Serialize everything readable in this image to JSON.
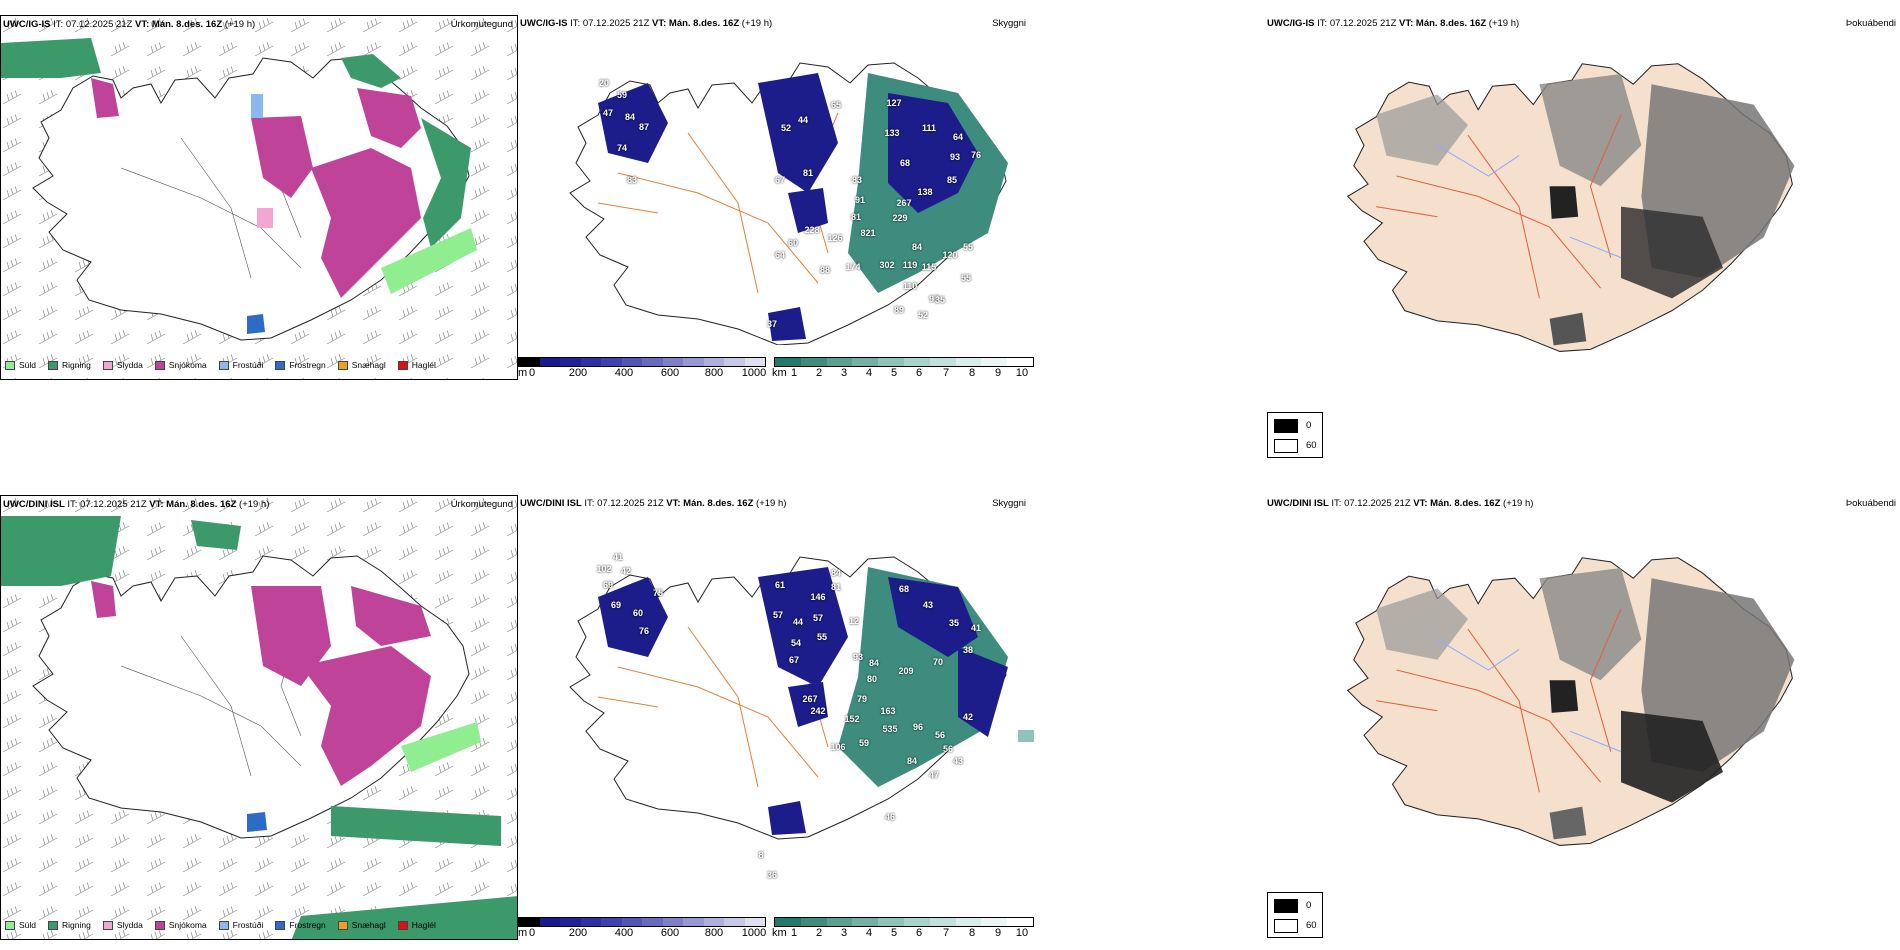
{
  "rows": [
    {
      "model": "UWC/IG-IS",
      "it_label": "IT:",
      "it_value": "07.12.2025 21Z",
      "vt_label": "VT:",
      "vt_value": "Mán. 8.des. 16Z",
      "lead": "(+19 h)",
      "precip_title": "Úrkomutegund",
      "vis_title": "Skyggni",
      "fog_title": "Þokuábendi",
      "vis_labels": [
        "20",
        "59",
        "47",
        "84",
        "87",
        "74",
        "83",
        "52",
        "44",
        "65",
        "127",
        "133",
        "67",
        "81",
        "111",
        "64",
        "68",
        "93",
        "76",
        "83",
        "85",
        "138",
        "91",
        "267",
        "81",
        "229",
        "228",
        "60",
        "126",
        "821",
        "84",
        "64",
        "88",
        "174",
        "302",
        "119",
        "115",
        "120",
        "55",
        "110",
        "55",
        "97",
        "89",
        "52",
        "35",
        "37"
      ]
    },
    {
      "model": "UWC/DINI ISL",
      "it_label": "IT:",
      "it_value": "07.12.2025 21Z",
      "vt_label": "VT:",
      "vt_value": "Mán. 8.des. 16Z",
      "lead": "(+19 h)",
      "precip_title": "Úrkomutegund",
      "vis_title": "Skyggni",
      "fog_title": "Þokuábendi",
      "vis_labels": [
        "41",
        "102",
        "42",
        "69",
        "75",
        "69",
        "60",
        "76",
        "61",
        "84",
        "146",
        "81",
        "57",
        "44",
        "57",
        "55",
        "54",
        "68",
        "43",
        "35",
        "41",
        "38",
        "67",
        "12",
        "84",
        "209",
        "70",
        "93",
        "80",
        "267",
        "242",
        "79",
        "152",
        "163",
        "535",
        "96",
        "56",
        "106",
        "59",
        "84",
        "56",
        "43",
        "42",
        "47",
        "46",
        "36",
        "8"
      ]
    }
  ],
  "precip_legend": [
    {
      "label": "Súld",
      "color": "#90ee90"
    },
    {
      "label": "Rigning",
      "color": "#3c9a6a"
    },
    {
      "label": "Slydda",
      "color": "#f4a6d0"
    },
    {
      "label": "Snjókoma",
      "color": "#c0439a"
    },
    {
      "label": "Frostúði",
      "color": "#8cb8f0"
    },
    {
      "label": "Frostregn",
      "color": "#2e6bc4"
    },
    {
      "label": "Snæhagl",
      "color": "#f0a020"
    },
    {
      "label": "Haglél",
      "color": "#e01010"
    }
  ],
  "height_scale": {
    "unit": "m",
    "ticks": [
      "0",
      "200",
      "400",
      "600",
      "800",
      "1000"
    ],
    "colors": [
      "#000000",
      "#1a1a8c",
      "#22229a",
      "#2f2fa8",
      "#4040b0",
      "#5555b8",
      "#6a6ac0",
      "#8080c8",
      "#9898d2",
      "#b0b0dc",
      "#c8c8e8",
      "#e0e0f2"
    ]
  },
  "km_scale": {
    "unit": "km",
    "ticks": [
      "1",
      "2",
      "3",
      "4",
      "5",
      "6",
      "7",
      "8",
      "9",
      "10"
    ],
    "colors": [
      "#1f7a6a",
      "#3d8c7e",
      "#58a092",
      "#72b2a6",
      "#8cc4ba",
      "#a6d4cc",
      "#c0e2dc",
      "#d8eeea",
      "#ecf7f5",
      "#ffffff"
    ]
  },
  "fog_legend": [
    {
      "value": "0",
      "color": "#000000"
    },
    {
      "value": "60",
      "color": "#ffffff"
    }
  ],
  "colors": {
    "land_beige": "#f4e0cc",
    "roads_orange": "#e0803a",
    "deep_blue": "#1c1c8a",
    "teal": "#3d8c7e",
    "snow_magenta": "#c0439a"
  }
}
